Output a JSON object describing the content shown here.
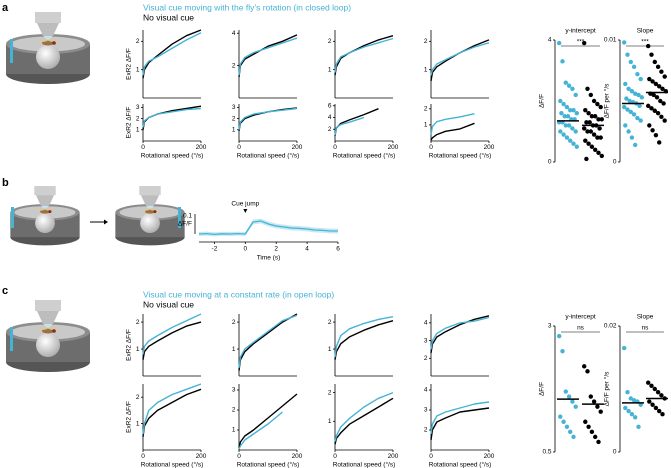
{
  "panels": [
    {
      "label": "a",
      "legend": [
        "Visual cue moving with the fly’s rotation (in closed loop)",
        "No visual cue"
      ]
    },
    {
      "label": "b"
    },
    {
      "label": "c",
      "legend": [
        "Visual cue moving at a constant rate (in open loop)",
        "No visual cue"
      ]
    }
  ],
  "chart_data": [
    {
      "type": "line",
      "ylabel": "ExR2 ΔF/F",
      "x": [
        0,
        5,
        20,
        50,
        100,
        150,
        200
      ],
      "xlim": [
        0,
        200
      ],
      "ylim": [
        0,
        2.4
      ],
      "yticks": [
        1,
        2
      ],
      "series": [
        {
          "color": "#000000",
          "values": [
            0.7,
            1.0,
            1.25,
            1.5,
            1.9,
            2.2,
            2.4
          ]
        },
        {
          "color": "#45b3d6",
          "values": [
            0.8,
            1.1,
            1.3,
            1.45,
            1.75,
            2.05,
            2.3
          ]
        }
      ]
    },
    {
      "type": "line",
      "x": [
        0,
        5,
        20,
        50,
        100,
        150,
        200
      ],
      "xlim": [
        0,
        200
      ],
      "ylim": [
        0,
        4.2
      ],
      "yticks": [
        2,
        4
      ],
      "series": [
        {
          "color": "#000000",
          "values": [
            1.3,
            2.0,
            2.4,
            2.7,
            3.2,
            3.5,
            3.9
          ]
        },
        {
          "color": "#45b3d6",
          "values": [
            1.4,
            2.1,
            2.5,
            2.8,
            3.1,
            3.4,
            3.7
          ]
        }
      ]
    },
    {
      "type": "line",
      "x": [
        0,
        5,
        20,
        50,
        100,
        150,
        200
      ],
      "xlim": [
        0,
        200
      ],
      "ylim": [
        0,
        2.4
      ],
      "yticks": [
        1,
        2
      ],
      "series": [
        {
          "color": "#000000",
          "values": [
            0.8,
            1.1,
            1.4,
            1.6,
            1.85,
            2.05,
            2.2
          ]
        },
        {
          "color": "#45b3d6",
          "values": [
            0.9,
            1.2,
            1.45,
            1.6,
            1.8,
            1.95,
            2.1
          ]
        }
      ]
    },
    {
      "type": "line",
      "x": [
        0,
        5,
        20,
        50,
        100,
        150,
        200
      ],
      "xlim": [
        0,
        200
      ],
      "ylim": [
        0,
        2.4
      ],
      "yticks": [
        1,
        2
      ],
      "series": [
        {
          "color": "#000000",
          "values": [
            0.6,
            0.9,
            1.1,
            1.3,
            1.6,
            1.85,
            2.05
          ]
        },
        {
          "color": "#45b3d6",
          "values": [
            0.8,
            1.0,
            1.2,
            1.35,
            1.6,
            1.8,
            1.95
          ]
        }
      ]
    },
    {
      "type": "line",
      "ylabel": "ExR2 ΔF/F",
      "xlabel": "Rotational speed (°/s)",
      "x": [
        0,
        5,
        20,
        50,
        100,
        150,
        200
      ],
      "xlim": [
        0,
        200
      ],
      "xticks": [
        0,
        200
      ],
      "ylim": [
        0,
        3.3
      ],
      "yticks": [
        1,
        2,
        3
      ],
      "series": [
        {
          "color": "#000000",
          "values": [
            1.0,
            1.7,
            2.1,
            2.4,
            2.7,
            2.9,
            3.1
          ]
        },
        {
          "color": "#45b3d6",
          "values": [
            1.2,
            1.8,
            2.1,
            2.4,
            2.6,
            2.8,
            2.9
          ]
        }
      ]
    },
    {
      "type": "line",
      "xlabel": "Rotational speed (°/s)",
      "x": [
        0,
        5,
        20,
        50,
        100,
        150,
        200
      ],
      "xlim": [
        0,
        200
      ],
      "xticks": [
        0,
        200
      ],
      "ylim": [
        0,
        3.3
      ],
      "yticks": [
        1,
        2,
        3
      ],
      "series": [
        {
          "color": "#000000",
          "values": [
            0.9,
            1.6,
            2.0,
            2.3,
            2.6,
            2.8,
            2.95
          ]
        },
        {
          "color": "#45b3d6",
          "values": [
            1.0,
            1.7,
            2.1,
            2.4,
            2.6,
            2.75,
            2.9
          ]
        }
      ]
    },
    {
      "type": "line",
      "xlabel": "Rotational speed (°/s)",
      "x": [
        0,
        5,
        20,
        50,
        100,
        150,
        200
      ],
      "xlim": [
        0,
        200
      ],
      "xticks": [
        0,
        200
      ],
      "ylim": [
        0,
        6.3
      ],
      "yticks": [
        2,
        4,
        6
      ],
      "series": [
        {
          "color": "#000000",
          "values": [
            0.9,
            2.2,
            3.0,
            3.6,
            4.5,
            5.5,
            null
          ]
        },
        {
          "color": "#45b3d6",
          "values": [
            1.0,
            2.3,
            2.8,
            3.2,
            4.0,
            null,
            null
          ]
        }
      ]
    },
    {
      "type": "line",
      "xlabel": "Rotational speed (°/s)",
      "x": [
        0,
        5,
        20,
        50,
        100,
        150,
        200
      ],
      "xlim": [
        0,
        200
      ],
      "xticks": [
        0,
        200
      ],
      "ylim": [
        0,
        2.3
      ],
      "yticks": [
        1,
        2
      ],
      "series": [
        {
          "color": "#000000",
          "values": [
            0.05,
            0.2,
            0.4,
            0.6,
            0.75,
            1.1,
            null
          ]
        },
        {
          "color": "#45b3d6",
          "values": [
            0.4,
            0.9,
            1.2,
            1.35,
            1.5,
            1.7,
            null
          ]
        }
      ]
    },
    {
      "type": "strip",
      "title": "y-intercept",
      "ylabel": "ΔF/F",
      "annotation": "***",
      "ylim": [
        0,
        4
      ],
      "yticks": [
        0,
        4
      ],
      "series": [
        {
          "color": "#45b3d6",
          "values": [
            3.9,
            3.3,
            2.6,
            2.5,
            2.4,
            2.2,
            2.0,
            1.9,
            1.8,
            1.7,
            1.7,
            1.6,
            1.6,
            1.5,
            1.5,
            1.4,
            1.4,
            1.3,
            1.3,
            1.2,
            1.2,
            1.1,
            1.0,
            1.0,
            0.9,
            0.8,
            0.7,
            0.6,
            0.5
          ],
          "center": 1.35
        },
        {
          "color": "#000000",
          "values": [
            3.9,
            2.4,
            2.2,
            2.0,
            1.9,
            1.8,
            1.7,
            1.6,
            1.5,
            1.5,
            1.4,
            1.4,
            1.3,
            1.3,
            1.2,
            1.2,
            1.1,
            1.1,
            1.0,
            1.0,
            0.9,
            0.8,
            0.8,
            0.7,
            0.6,
            0.5,
            0.4,
            0.3,
            0.2,
            0.1
          ],
          "center": 1.2
        }
      ]
    },
    {
      "type": "strip",
      "title": "Slope",
      "ylabel": "ΔF/F per °/s",
      "annotation": "***",
      "ylim": [
        0,
        0.01
      ],
      "yticks": [
        0,
        0.01
      ],
      "series": [
        {
          "color": "#45b3d6",
          "values": [
            0.0098,
            0.0088,
            0.0082,
            0.0078,
            0.0072,
            0.0068,
            0.0064,
            0.006,
            0.0058,
            0.0056,
            0.0055,
            0.0053,
            0.0052,
            0.005,
            0.0049,
            0.0048,
            0.0046,
            0.0045,
            0.0043,
            0.0041,
            0.0039,
            0.0036,
            0.0034,
            0.003,
            0.0025,
            0.002,
            0.0014
          ],
          "center": 0.0048
        },
        {
          "color": "#000000",
          "values": [
            0.0095,
            0.0088,
            0.0082,
            0.0078,
            0.0074,
            0.007,
            0.0068,
            0.0066,
            0.0064,
            0.0062,
            0.006,
            0.0058,
            0.0056,
            0.0055,
            0.0053,
            0.005,
            0.0048,
            0.0046,
            0.0044,
            0.0042,
            0.004,
            0.0037,
            0.0034,
            0.003,
            0.0026,
            0.0022,
            0.0016
          ],
          "center": 0.0057
        }
      ]
    },
    {
      "type": "trace",
      "annotation": "Cue jump",
      "annotation_x": 0,
      "xlabel": "Time (s)",
      "ylabel": "ΔF/F",
      "scalebar": 0.1,
      "x": [
        -3,
        -2.5,
        -2,
        -1.5,
        -1,
        -0.5,
        0,
        0.5,
        1,
        1.5,
        2,
        2.5,
        3,
        3.5,
        4,
        4.5,
        5,
        5.5,
        6
      ],
      "xlim": [
        -3,
        6
      ],
      "xticks": [
        -2,
        0,
        2,
        4,
        6
      ],
      "ylim": [
        -0.03,
        0.1
      ],
      "values": [
        0,
        0.002,
        -0.002,
        0.001,
        0,
        0.002,
        0,
        0.06,
        0.065,
        0.05,
        0.04,
        0.035,
        0.03,
        0.028,
        0.025,
        0.02,
        0.018,
        0.015,
        0.015
      ],
      "errors": [
        0.01,
        0.01,
        0.01,
        0.01,
        0.01,
        0.01,
        0.01,
        0.012,
        0.012,
        0.012,
        0.012,
        0.012,
        0.012,
        0.012,
        0.012,
        0.012,
        0.012,
        0.012,
        0.012
      ],
      "color": "#45b3d6"
    },
    {
      "type": "line",
      "ylabel": "ExR2 ΔF/F",
      "x": [
        0,
        5,
        20,
        50,
        100,
        150,
        200
      ],
      "xlim": [
        0,
        200
      ],
      "ylim": [
        0,
        2.3
      ],
      "yticks": [
        1,
        2
      ],
      "series": [
        {
          "color": "#000000",
          "values": [
            0.6,
            0.9,
            1.1,
            1.3,
            1.6,
            1.85,
            2.0
          ]
        },
        {
          "color": "#45b3d6",
          "values": [
            0.8,
            1.1,
            1.3,
            1.5,
            1.8,
            2.05,
            2.3
          ]
        }
      ]
    },
    {
      "type": "line",
      "x": [
        0,
        5,
        20,
        50,
        100,
        150,
        200
      ],
      "xlim": [
        0,
        200
      ],
      "ylim": [
        0,
        2.3
      ],
      "yticks": [
        1,
        2
      ],
      "series": [
        {
          "color": "#000000",
          "values": [
            0.2,
            0.6,
            0.9,
            1.2,
            1.6,
            2.0,
            2.3
          ]
        },
        {
          "color": "#45b3d6",
          "values": [
            0.3,
            0.7,
            1.0,
            1.25,
            1.65,
            2.05,
            2.25
          ]
        }
      ]
    },
    {
      "type": "line",
      "x": [
        0,
        5,
        20,
        50,
        100,
        150,
        200
      ],
      "xlim": [
        0,
        200
      ],
      "ylim": [
        0,
        2.3
      ],
      "yticks": [
        1,
        2
      ],
      "series": [
        {
          "color": "#000000",
          "values": [
            0.6,
            0.9,
            1.2,
            1.45,
            1.7,
            1.9,
            2.05
          ]
        },
        {
          "color": "#45b3d6",
          "values": [
            0.7,
            1.1,
            1.5,
            1.75,
            1.95,
            2.1,
            2.2
          ]
        }
      ]
    },
    {
      "type": "line",
      "x": [
        0,
        5,
        20,
        50,
        100,
        150,
        200
      ],
      "xlim": [
        0,
        200
      ],
      "ylim": [
        1,
        4.5
      ],
      "yticks": [
        2,
        3,
        4
      ],
      "series": [
        {
          "color": "#000000",
          "values": [
            2.3,
            2.8,
            3.2,
            3.5,
            3.9,
            4.2,
            4.4
          ]
        },
        {
          "color": "#45b3d6",
          "values": [
            2.5,
            3.0,
            3.4,
            3.7,
            4.0,
            4.1,
            4.3
          ]
        }
      ]
    },
    {
      "type": "line",
      "ylabel": "ExR2 ΔF/F",
      "xlabel": "Rotational speed (°/s)",
      "x": [
        0,
        5,
        20,
        50,
        100,
        150,
        200
      ],
      "xlim": [
        0,
        200
      ],
      "xticks": [
        0,
        200
      ],
      "ylim": [
        0,
        2.5
      ],
      "yticks": [
        1,
        2
      ],
      "series": [
        {
          "color": "#000000",
          "values": [
            0.5,
            0.9,
            1.2,
            1.5,
            1.8,
            2.1,
            2.3
          ]
        },
        {
          "color": "#45b3d6",
          "values": [
            0.6,
            1.0,
            1.5,
            1.8,
            2.1,
            2.3,
            2.5
          ]
        }
      ]
    },
    {
      "type": "line",
      "xlabel": "Rotational speed (°/s)",
      "x": [
        0,
        5,
        20,
        50,
        100,
        150,
        200
      ],
      "xlim": [
        0,
        200
      ],
      "xticks": [
        0,
        200
      ],
      "ylim": [
        0,
        3.3
      ],
      "yticks": [
        1,
        2,
        3
      ],
      "series": [
        {
          "color": "#000000",
          "values": [
            0.1,
            0.4,
            0.7,
            1.0,
            1.6,
            2.2,
            2.8
          ]
        },
        {
          "color": "#45b3d6",
          "values": [
            0.05,
            0.2,
            0.5,
            0.8,
            1.3,
            1.9,
            null
          ]
        }
      ]
    },
    {
      "type": "line",
      "xlabel": "Rotational speed (°/s)",
      "x": [
        0,
        5,
        20,
        50,
        100,
        150,
        200
      ],
      "xlim": [
        0,
        200
      ],
      "xticks": [
        0,
        200
      ],
      "ylim": [
        0,
        2.3
      ],
      "yticks": [
        1,
        2
      ],
      "series": [
        {
          "color": "#000000",
          "values": [
            0.2,
            0.4,
            0.6,
            0.9,
            1.2,
            1.5,
            1.8
          ]
        },
        {
          "color": "#45b3d6",
          "values": [
            0.3,
            0.5,
            0.8,
            1.1,
            1.5,
            1.8,
            2.0
          ]
        }
      ]
    },
    {
      "type": "line",
      "xlabel": "Rotational speed (°/s)",
      "x": [
        0,
        5,
        20,
        50,
        100,
        150,
        200
      ],
      "xlim": [
        0,
        200
      ],
      "xticks": [
        0,
        200
      ],
      "ylim": [
        1,
        4.3
      ],
      "yticks": [
        2,
        3,
        4
      ],
      "series": [
        {
          "color": "#000000",
          "values": [
            1.5,
            2.0,
            2.4,
            2.6,
            2.9,
            3.0,
            3.1
          ]
        },
        {
          "color": "#45b3d6",
          "values": [
            1.8,
            2.3,
            2.7,
            2.9,
            3.1,
            3.3,
            3.4
          ]
        }
      ]
    },
    {
      "type": "strip",
      "title": "y-intercept",
      "ylabel": "ΔF/F",
      "annotation": "ns",
      "ylim": [
        0.5,
        3
      ],
      "yticks": [
        0.5,
        3
      ],
      "series": [
        {
          "color": "#45b3d6",
          "values": [
            2.8,
            2.5,
            1.7,
            1.6,
            1.5,
            1.4,
            1.2,
            1.1,
            1.0,
            0.9,
            0.8
          ],
          "center": 1.55
        },
        {
          "color": "#000000",
          "values": [
            2.2,
            2.1,
            1.6,
            1.5,
            1.4,
            1.3,
            1.1,
            1.0,
            0.9,
            0.8,
            0.7
          ],
          "center": 1.45
        }
      ]
    },
    {
      "type": "strip",
      "title": "Slope",
      "ylabel": "ΔF/F per °/s",
      "annotation": "ns",
      "ylim": [
        0,
        0.02
      ],
      "yticks": [
        0,
        0.02
      ],
      "series": [
        {
          "color": "#45b3d6",
          "values": [
            0.0165,
            0.0095,
            0.0085,
            0.0082,
            0.008,
            0.0075,
            0.007,
            0.0065,
            0.006,
            0.0055,
            0.004
          ],
          "center": 0.0078
        },
        {
          "color": "#000000",
          "values": [
            0.011,
            0.0105,
            0.01,
            0.0095,
            0.009,
            0.0085,
            0.008,
            0.0075,
            0.007,
            0.0065,
            0.006
          ],
          "center": 0.0085
        }
      ]
    }
  ]
}
